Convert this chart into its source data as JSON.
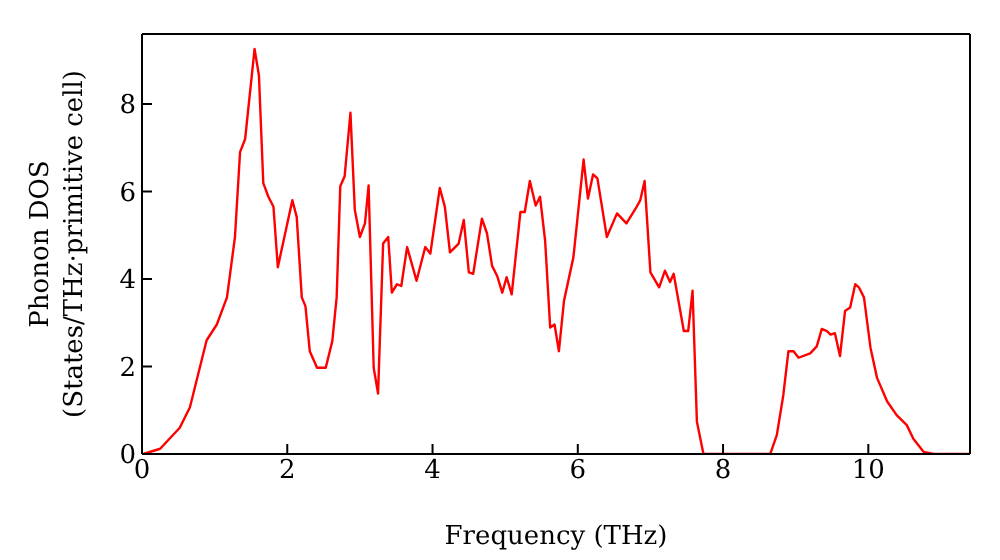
{
  "chart_data": {
    "type": "line",
    "xlabel": "Frequency (THz)",
    "ylabel": "Phonon DOS\n(States/THz·primitive cell)",
    "xlim": [
      0,
      11.4
    ],
    "ylim": [
      0,
      9.6
    ],
    "xticks": [
      0,
      2,
      4,
      6,
      8,
      10
    ],
    "yticks": [
      0,
      2,
      4,
      6,
      8
    ],
    "legend": false,
    "marker": "none",
    "line_style": "solid",
    "series": [
      {
        "color": "#ff0000",
        "x": [
          0.02,
          0.25,
          0.52,
          0.66,
          0.89,
          1.03,
          1.17,
          1.28,
          1.35,
          1.42,
          1.55,
          1.61,
          1.67,
          1.74,
          1.81,
          1.87,
          2.07,
          2.13,
          2.2,
          2.25,
          2.31,
          2.41,
          2.53,
          2.62,
          2.68,
          2.73,
          2.79,
          2.87,
          2.93,
          3.0,
          3.07,
          3.12,
          3.19,
          3.25,
          3.32,
          3.39,
          3.44,
          3.51,
          3.57,
          3.65,
          3.78,
          3.9,
          3.97,
          4.1,
          4.17,
          4.24,
          4.36,
          4.43,
          4.5,
          4.56,
          4.68,
          4.75,
          4.82,
          4.89,
          4.96,
          5.02,
          5.09,
          5.21,
          5.27,
          5.34,
          5.42,
          5.48,
          5.55,
          5.62,
          5.68,
          5.74,
          5.81,
          5.94,
          6.08,
          6.14,
          6.21,
          6.27,
          6.4,
          6.54,
          6.67,
          6.81,
          6.86,
          6.92,
          7.0,
          7.12,
          7.2,
          7.27,
          7.32,
          7.46,
          7.52,
          7.58,
          7.64,
          7.73,
          8.65,
          8.74,
          8.83,
          8.9,
          8.97,
          9.04,
          9.2,
          9.29,
          9.36,
          9.43,
          9.48,
          9.54,
          9.61,
          9.68,
          9.75,
          9.82,
          9.87,
          9.94,
          10.03,
          10.12,
          10.26,
          10.39,
          10.53,
          10.62,
          10.76,
          10.9,
          11.4
        ],
        "values": [
          0,
          0.12,
          0.6,
          1.07,
          2.6,
          2.96,
          3.58,
          4.96,
          6.9,
          7.2,
          9.26,
          8.65,
          6.19,
          5.88,
          5.65,
          4.27,
          5.8,
          5.42,
          3.58,
          3.38,
          2.35,
          1.97,
          1.97,
          2.58,
          3.58,
          6.12,
          6.35,
          7.8,
          5.58,
          4.96,
          5.27,
          6.14,
          1.97,
          1.38,
          4.81,
          4.96,
          3.69,
          3.88,
          3.84,
          4.73,
          3.96,
          4.73,
          4.58,
          6.08,
          5.65,
          4.61,
          4.81,
          5.35,
          4.15,
          4.12,
          5.38,
          5.04,
          4.3,
          4.07,
          3.69,
          4.04,
          3.65,
          5.53,
          5.53,
          6.24,
          5.68,
          5.88,
          4.88,
          2.89,
          2.96,
          2.35,
          3.5,
          4.5,
          6.73,
          5.84,
          6.39,
          6.3,
          4.96,
          5.5,
          5.27,
          5.65,
          5.8,
          6.24,
          4.15,
          3.81,
          4.19,
          3.93,
          4.12,
          2.81,
          2.81,
          3.73,
          0.74,
          0,
          0,
          0.43,
          1.35,
          2.35,
          2.35,
          2.2,
          2.3,
          2.46,
          2.86,
          2.81,
          2.73,
          2.76,
          2.24,
          3.27,
          3.35,
          3.88,
          3.81,
          3.58,
          2.43,
          1.74,
          1.2,
          0.89,
          0.66,
          0.35,
          0.05,
          0,
          0
        ]
      }
    ]
  }
}
